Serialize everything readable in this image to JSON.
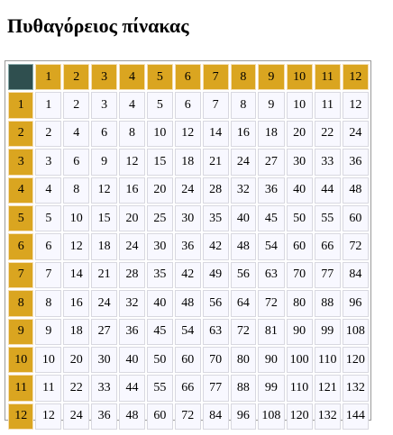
{
  "page": {
    "title": "Πυθαγόρειος πίνακας"
  },
  "table": {
    "header": [
      "1",
      "2",
      "3",
      "4",
      "5",
      "6",
      "7",
      "8",
      "9",
      "10",
      "11",
      "12"
    ],
    "rows": [
      {
        "label": "1",
        "values": [
          "1",
          "2",
          "3",
          "4",
          "5",
          "6",
          "7",
          "8",
          "9",
          "10",
          "11",
          "12"
        ]
      },
      {
        "label": "2",
        "values": [
          "2",
          "4",
          "6",
          "8",
          "10",
          "12",
          "14",
          "16",
          "18",
          "20",
          "22",
          "24"
        ]
      },
      {
        "label": "3",
        "values": [
          "3",
          "6",
          "9",
          "12",
          "15",
          "18",
          "21",
          "24",
          "27",
          "30",
          "33",
          "36"
        ]
      },
      {
        "label": "4",
        "values": [
          "4",
          "8",
          "12",
          "16",
          "20",
          "24",
          "28",
          "32",
          "36",
          "40",
          "44",
          "48"
        ]
      },
      {
        "label": "5",
        "values": [
          "5",
          "10",
          "15",
          "20",
          "25",
          "30",
          "35",
          "40",
          "45",
          "50",
          "55",
          "60"
        ]
      },
      {
        "label": "6",
        "values": [
          "6",
          "12",
          "18",
          "24",
          "30",
          "36",
          "42",
          "48",
          "54",
          "60",
          "66",
          "72"
        ]
      },
      {
        "label": "7",
        "values": [
          "7",
          "14",
          "21",
          "28",
          "35",
          "42",
          "49",
          "56",
          "63",
          "70",
          "77",
          "84"
        ]
      },
      {
        "label": "8",
        "values": [
          "8",
          "16",
          "24",
          "32",
          "40",
          "48",
          "56",
          "64",
          "72",
          "80",
          "88",
          "96"
        ]
      },
      {
        "label": "9",
        "values": [
          "9",
          "18",
          "27",
          "36",
          "45",
          "54",
          "63",
          "72",
          "81",
          "90",
          "99",
          "108"
        ]
      },
      {
        "label": "10",
        "values": [
          "10",
          "20",
          "30",
          "40",
          "50",
          "60",
          "70",
          "80",
          "90",
          "100",
          "110",
          "120"
        ]
      },
      {
        "label": "11",
        "values": [
          "11",
          "22",
          "33",
          "44",
          "55",
          "66",
          "77",
          "88",
          "99",
          "110",
          "121",
          "132"
        ]
      },
      {
        "label": "12",
        "values": [
          "12",
          "24",
          "36",
          "48",
          "60",
          "72",
          "84",
          "96",
          "108",
          "120",
          "132",
          "144"
        ]
      }
    ]
  },
  "colors": {
    "header_bg": "#daa520",
    "corner_bg": "#2f4f4f",
    "cell_bg": "#f8f8ff"
  }
}
